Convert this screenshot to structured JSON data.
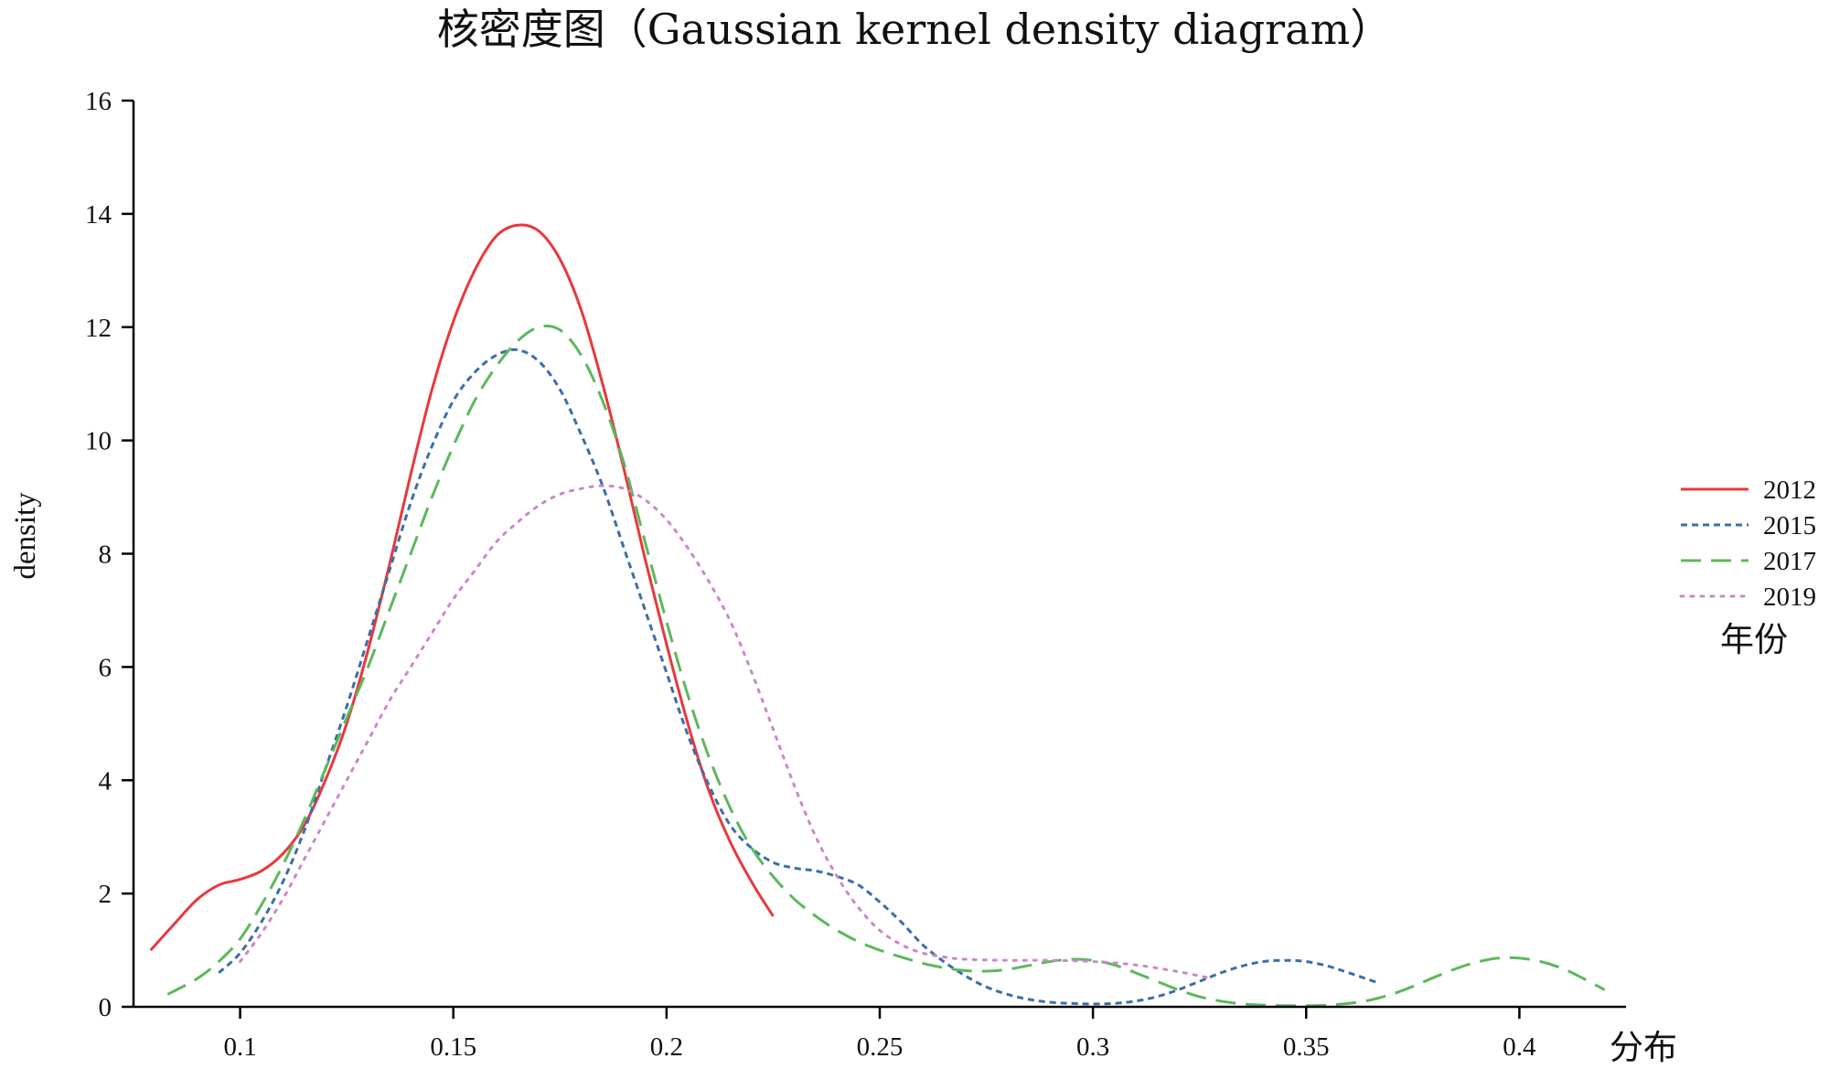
{
  "chart_data": {
    "type": "line",
    "title": "核密度图（Gaussian kernel density diagram）",
    "xlabel": "分布",
    "ylabel": "density",
    "xlim": [
      0.075,
      0.425
    ],
    "ylim": [
      0,
      16
    ],
    "xticks": [
      "0.1",
      "0.15",
      "0.2",
      "0.25",
      "0.3",
      "0.35",
      "0.4"
    ],
    "yticks": [
      "0",
      "2",
      "4",
      "6",
      "8",
      "10",
      "12",
      "14",
      "16"
    ],
    "legend": {
      "title": "年份",
      "position": "right"
    },
    "series": [
      {
        "name": "2012",
        "color": "#e8383d",
        "dash": "solid",
        "points": [
          [
            0.079,
            1.0
          ],
          [
            0.085,
            1.5
          ],
          [
            0.09,
            1.9
          ],
          [
            0.095,
            2.15
          ],
          [
            0.1,
            2.25
          ],
          [
            0.105,
            2.4
          ],
          [
            0.11,
            2.7
          ],
          [
            0.115,
            3.2
          ],
          [
            0.12,
            4.0
          ],
          [
            0.125,
            5.0
          ],
          [
            0.13,
            6.3
          ],
          [
            0.135,
            7.8
          ],
          [
            0.14,
            9.4
          ],
          [
            0.145,
            10.9
          ],
          [
            0.15,
            12.1
          ],
          [
            0.155,
            13.0
          ],
          [
            0.16,
            13.6
          ],
          [
            0.165,
            13.8
          ],
          [
            0.17,
            13.7
          ],
          [
            0.175,
            13.2
          ],
          [
            0.18,
            12.3
          ],
          [
            0.185,
            11.0
          ],
          [
            0.19,
            9.5
          ],
          [
            0.195,
            7.9
          ],
          [
            0.2,
            6.4
          ],
          [
            0.205,
            5.0
          ],
          [
            0.21,
            3.8
          ],
          [
            0.215,
            2.9
          ],
          [
            0.22,
            2.2
          ],
          [
            0.225,
            1.6
          ]
        ]
      },
      {
        "name": "2015",
        "color": "#3a6fa8",
        "dash": "short-dash",
        "points": [
          [
            0.095,
            0.6
          ],
          [
            0.1,
            0.95
          ],
          [
            0.105,
            1.5
          ],
          [
            0.11,
            2.2
          ],
          [
            0.115,
            3.1
          ],
          [
            0.12,
            4.2
          ],
          [
            0.125,
            5.3
          ],
          [
            0.13,
            6.5
          ],
          [
            0.135,
            7.7
          ],
          [
            0.14,
            8.9
          ],
          [
            0.145,
            9.9
          ],
          [
            0.15,
            10.7
          ],
          [
            0.155,
            11.2
          ],
          [
            0.16,
            11.5
          ],
          [
            0.165,
            11.6
          ],
          [
            0.17,
            11.4
          ],
          [
            0.175,
            10.9
          ],
          [
            0.18,
            10.1
          ],
          [
            0.185,
            9.2
          ],
          [
            0.19,
            8.1
          ],
          [
            0.195,
            7.0
          ],
          [
            0.2,
            5.9
          ],
          [
            0.205,
            4.8
          ],
          [
            0.21,
            3.9
          ],
          [
            0.215,
            3.2
          ],
          [
            0.22,
            2.8
          ],
          [
            0.225,
            2.55
          ],
          [
            0.23,
            2.45
          ],
          [
            0.235,
            2.4
          ],
          [
            0.24,
            2.3
          ],
          [
            0.245,
            2.15
          ],
          [
            0.25,
            1.85
          ],
          [
            0.255,
            1.5
          ],
          [
            0.26,
            1.1
          ],
          [
            0.265,
            0.8
          ],
          [
            0.27,
            0.55
          ],
          [
            0.275,
            0.35
          ],
          [
            0.28,
            0.22
          ],
          [
            0.285,
            0.13
          ],
          [
            0.29,
            0.08
          ],
          [
            0.295,
            0.06
          ],
          [
            0.3,
            0.05
          ],
          [
            0.305,
            0.06
          ],
          [
            0.31,
            0.1
          ],
          [
            0.315,
            0.18
          ],
          [
            0.32,
            0.3
          ],
          [
            0.325,
            0.45
          ],
          [
            0.33,
            0.6
          ],
          [
            0.335,
            0.72
          ],
          [
            0.34,
            0.8
          ],
          [
            0.345,
            0.82
          ],
          [
            0.35,
            0.8
          ],
          [
            0.355,
            0.72
          ],
          [
            0.36,
            0.6
          ],
          [
            0.367,
            0.42
          ]
        ]
      },
      {
        "name": "2017",
        "color": "#5cb85c",
        "dash": "long-dash",
        "points": [
          [
            0.083,
            0.22
          ],
          [
            0.09,
            0.5
          ],
          [
            0.095,
            0.8
          ],
          [
            0.1,
            1.2
          ],
          [
            0.105,
            1.8
          ],
          [
            0.11,
            2.5
          ],
          [
            0.115,
            3.3
          ],
          [
            0.12,
            4.2
          ],
          [
            0.125,
            5.1
          ],
          [
            0.13,
            6.0
          ],
          [
            0.135,
            7.0
          ],
          [
            0.14,
            8.0
          ],
          [
            0.145,
            9.0
          ],
          [
            0.15,
            9.9
          ],
          [
            0.155,
            10.7
          ],
          [
            0.16,
            11.3
          ],
          [
            0.165,
            11.75
          ],
          [
            0.17,
            12.0
          ],
          [
            0.175,
            11.95
          ],
          [
            0.18,
            11.5
          ],
          [
            0.185,
            10.7
          ],
          [
            0.19,
            9.6
          ],
          [
            0.195,
            8.2
          ],
          [
            0.2,
            6.8
          ],
          [
            0.205,
            5.5
          ],
          [
            0.21,
            4.4
          ],
          [
            0.215,
            3.5
          ],
          [
            0.22,
            2.8
          ],
          [
            0.225,
            2.3
          ],
          [
            0.23,
            1.9
          ],
          [
            0.235,
            1.6
          ],
          [
            0.24,
            1.35
          ],
          [
            0.245,
            1.15
          ],
          [
            0.25,
            1.0
          ],
          [
            0.255,
            0.88
          ],
          [
            0.26,
            0.77
          ],
          [
            0.265,
            0.69
          ],
          [
            0.27,
            0.64
          ],
          [
            0.275,
            0.63
          ],
          [
            0.28,
            0.66
          ],
          [
            0.285,
            0.73
          ],
          [
            0.29,
            0.8
          ],
          [
            0.295,
            0.84
          ],
          [
            0.3,
            0.82
          ],
          [
            0.305,
            0.74
          ],
          [
            0.31,
            0.6
          ],
          [
            0.315,
            0.45
          ],
          [
            0.32,
            0.3
          ],
          [
            0.325,
            0.18
          ],
          [
            0.33,
            0.1
          ],
          [
            0.335,
            0.05
          ],
          [
            0.34,
            0.03
          ],
          [
            0.345,
            0.02
          ],
          [
            0.35,
            0.02
          ],
          [
            0.355,
            0.03
          ],
          [
            0.36,
            0.06
          ],
          [
            0.365,
            0.12
          ],
          [
            0.37,
            0.22
          ],
          [
            0.375,
            0.36
          ],
          [
            0.38,
            0.52
          ],
          [
            0.385,
            0.67
          ],
          [
            0.39,
            0.79
          ],
          [
            0.395,
            0.86
          ],
          [
            0.4,
            0.86
          ],
          [
            0.405,
            0.8
          ],
          [
            0.41,
            0.68
          ],
          [
            0.415,
            0.5
          ],
          [
            0.42,
            0.3
          ]
        ]
      },
      {
        "name": "2019",
        "color": "#cf84cf",
        "dash": "dotted",
        "points": [
          [
            0.1,
            0.8
          ],
          [
            0.105,
            1.3
          ],
          [
            0.11,
            1.9
          ],
          [
            0.115,
            2.6
          ],
          [
            0.12,
            3.3
          ],
          [
            0.125,
            4.0
          ],
          [
            0.13,
            4.7
          ],
          [
            0.135,
            5.4
          ],
          [
            0.14,
            6.0
          ],
          [
            0.145,
            6.6
          ],
          [
            0.15,
            7.2
          ],
          [
            0.155,
            7.7
          ],
          [
            0.16,
            8.2
          ],
          [
            0.165,
            8.55
          ],
          [
            0.17,
            8.85
          ],
          [
            0.175,
            9.05
          ],
          [
            0.18,
            9.15
          ],
          [
            0.185,
            9.2
          ],
          [
            0.19,
            9.15
          ],
          [
            0.195,
            8.95
          ],
          [
            0.2,
            8.6
          ],
          [
            0.205,
            8.1
          ],
          [
            0.21,
            7.5
          ],
          [
            0.215,
            6.8
          ],
          [
            0.22,
            5.9
          ],
          [
            0.225,
            4.9
          ],
          [
            0.23,
            3.9
          ],
          [
            0.235,
            3.0
          ],
          [
            0.24,
            2.3
          ],
          [
            0.245,
            1.75
          ],
          [
            0.25,
            1.35
          ],
          [
            0.255,
            1.1
          ],
          [
            0.26,
            0.95
          ],
          [
            0.265,
            0.88
          ],
          [
            0.27,
            0.84
          ],
          [
            0.28,
            0.82
          ],
          [
            0.29,
            0.82
          ],
          [
            0.3,
            0.8
          ],
          [
            0.31,
            0.74
          ],
          [
            0.32,
            0.62
          ],
          [
            0.328,
            0.5
          ]
        ]
      }
    ]
  }
}
